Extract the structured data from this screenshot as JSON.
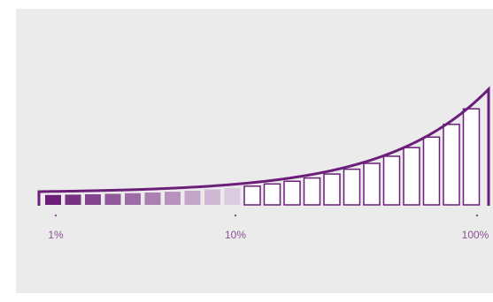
{
  "chart_data": {
    "type": "area",
    "title": "",
    "xlabel": "",
    "ylabel": "",
    "scale": "log",
    "xlim": [
      1,
      100
    ],
    "tick_labels": [
      "1%",
      "10%",
      "100%"
    ],
    "tick_values": [
      1,
      10,
      100
    ],
    "bar_count": 22,
    "filled_bar_count": 10,
    "colors": {
      "stroke": "#6b1f78",
      "filled_bar_darkest": "#6b1f78",
      "filled_bar_lightest": "#dccbe0",
      "outline_bar_fill": "#ffffff",
      "tick_label": "#8a4f95",
      "background": "#ebebeb"
    }
  }
}
